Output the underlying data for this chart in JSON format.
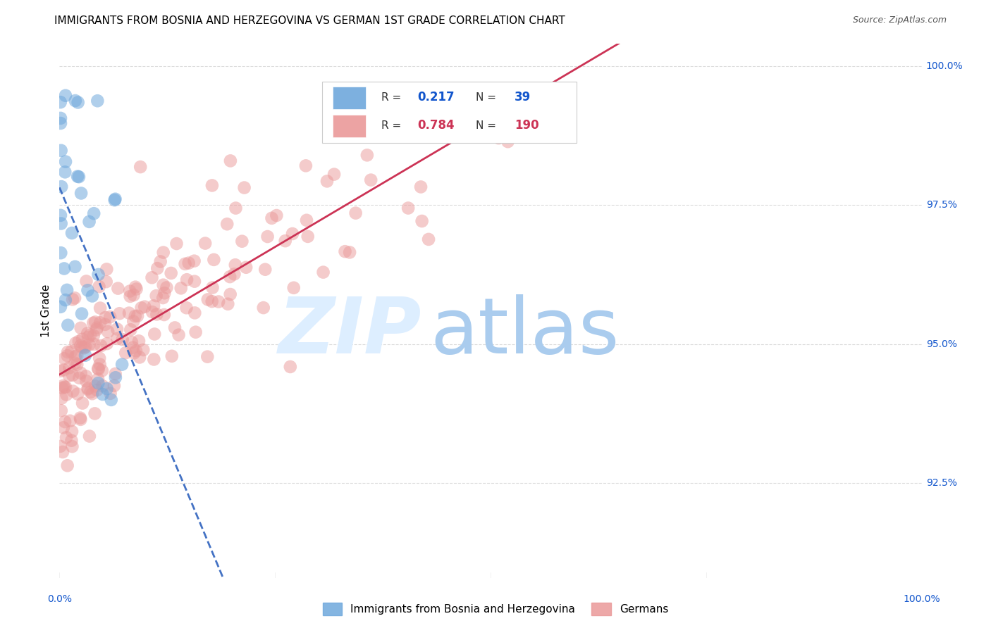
{
  "title": "IMMIGRANTS FROM BOSNIA AND HERZEGOVINA VS GERMAN 1ST GRADE CORRELATION CHART",
  "source": "Source: ZipAtlas.com",
  "ylabel": "1st Grade",
  "xlim": [
    0.0,
    1.0
  ],
  "ylim": [
    0.908,
    1.004
  ],
  "ytick_labels": [
    "92.5%",
    "95.0%",
    "97.5%",
    "100.0%"
  ],
  "ytick_values": [
    0.925,
    0.95,
    0.975,
    1.0
  ],
  "color_blue": "#6fa8dc",
  "color_pink": "#ea9999",
  "color_blue_line": "#4472c4",
  "color_pink_line": "#cc3355",
  "color_axis_label": "#1155cc",
  "background_color": "#ffffff",
  "grid_color": "#d8d8d8",
  "title_fontsize": 11,
  "source_fontsize": 9,
  "legend_label_blue": "Immigrants from Bosnia and Herzegovina",
  "legend_label_pink": "Germans",
  "legend_r1_val": "0.217",
  "legend_n1_val": "39",
  "legend_r2_val": "0.784",
  "legend_n2_val": "190"
}
